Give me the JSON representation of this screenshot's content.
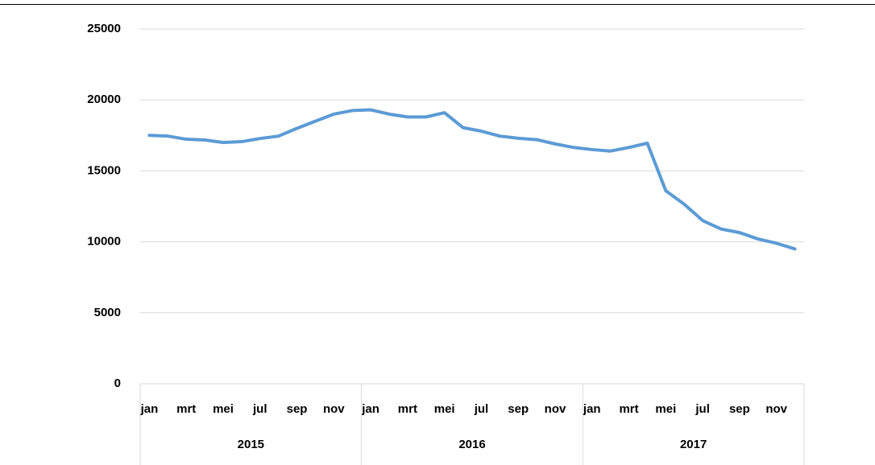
{
  "chart_data": {
    "type": "line",
    "categories": [
      "jan",
      null,
      "mrt",
      null,
      "mei",
      null,
      "jul",
      null,
      "sep",
      null,
      "nov",
      null,
      "jan",
      null,
      "mrt",
      null,
      "mei",
      null,
      "jul",
      null,
      "sep",
      null,
      "nov",
      null,
      "jan",
      null,
      "mrt",
      null,
      "mei",
      null,
      "jul",
      null,
      "sep",
      null,
      "nov",
      null
    ],
    "groups": [
      "2015",
      "2016",
      "2017"
    ],
    "series": [
      {
        "color": "#5b9bd5",
        "values": [
          17500,
          17450,
          17230,
          17180,
          17000,
          17060,
          17280,
          17450,
          18000,
          18500,
          19000,
          19250,
          19300,
          19000,
          18800,
          18800,
          19100,
          18050,
          17800,
          17450,
          17300,
          17200,
          16900,
          16650,
          16500,
          16400,
          16650,
          16950,
          13600,
          12650,
          11500,
          10900,
          10650,
          10200,
          9900,
          9500
        ]
      }
    ],
    "ylim": [
      0,
      25000
    ],
    "yticks": [
      0,
      5000,
      10000,
      15000,
      20000,
      25000
    ],
    "grid": true
  }
}
